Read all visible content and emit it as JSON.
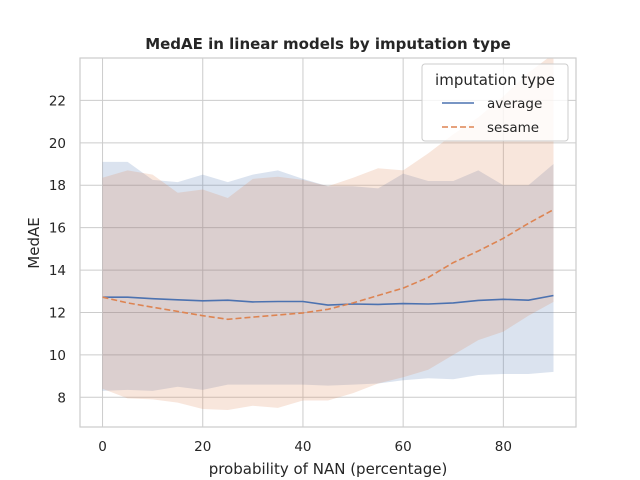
{
  "chart_data": {
    "type": "line",
    "title": "MedAE in linear models by imputation type",
    "xlabel": "probability of NAN (percentage)",
    "ylabel": "MedAE",
    "xlim": [
      -4.5,
      94.5
    ],
    "ylim": [
      6.6,
      24.0
    ],
    "xticks": [
      0,
      20,
      40,
      60,
      80
    ],
    "yticks": [
      8,
      10,
      12,
      14,
      16,
      18,
      20,
      22
    ],
    "grid": true,
    "legend": {
      "title": "imputation type",
      "placement": "top-right"
    },
    "x": [
      0,
      5,
      10,
      15,
      20,
      25,
      30,
      35,
      40,
      45,
      50,
      55,
      60,
      65,
      70,
      75,
      80,
      85,
      90
    ],
    "series": [
      {
        "name": "average",
        "color": "#4c72b0",
        "linestyle": "solid",
        "values": [
          12.72,
          12.72,
          12.65,
          12.6,
          12.55,
          12.58,
          12.5,
          12.52,
          12.52,
          12.35,
          12.4,
          12.38,
          12.42,
          12.4,
          12.45,
          12.57,
          12.62,
          12.58,
          12.8
        ],
        "ci_lower": [
          8.3,
          8.35,
          8.3,
          8.5,
          8.35,
          8.6,
          8.6,
          8.6,
          8.6,
          8.55,
          8.6,
          8.65,
          8.8,
          8.9,
          8.85,
          9.05,
          9.1,
          9.1,
          9.2
        ],
        "ci_upper": [
          19.1,
          19.1,
          18.25,
          18.15,
          18.5,
          18.15,
          18.5,
          18.7,
          18.3,
          17.95,
          17.95,
          17.85,
          18.55,
          18.2,
          18.2,
          18.7,
          18.0,
          18.0,
          19.0
        ]
      },
      {
        "name": "sesame",
        "color": "#dd8452",
        "linestyle": "dashed",
        "values": [
          12.72,
          12.45,
          12.25,
          12.05,
          11.85,
          11.68,
          11.78,
          11.88,
          11.98,
          12.15,
          12.45,
          12.8,
          13.15,
          13.65,
          14.35,
          14.9,
          15.5,
          16.2,
          16.85
        ],
        "ci_lower": [
          8.4,
          7.95,
          7.9,
          7.75,
          7.45,
          7.4,
          7.6,
          7.5,
          7.85,
          7.85,
          8.2,
          8.65,
          8.95,
          9.3,
          10.0,
          10.7,
          11.1,
          11.85,
          12.5
        ],
        "ci_upper": [
          18.35,
          18.7,
          18.5,
          17.65,
          17.8,
          17.4,
          18.3,
          18.4,
          18.25,
          17.95,
          18.35,
          18.8,
          18.7,
          19.5,
          20.4,
          21.2,
          22.2,
          23.3,
          24.2
        ]
      }
    ]
  }
}
